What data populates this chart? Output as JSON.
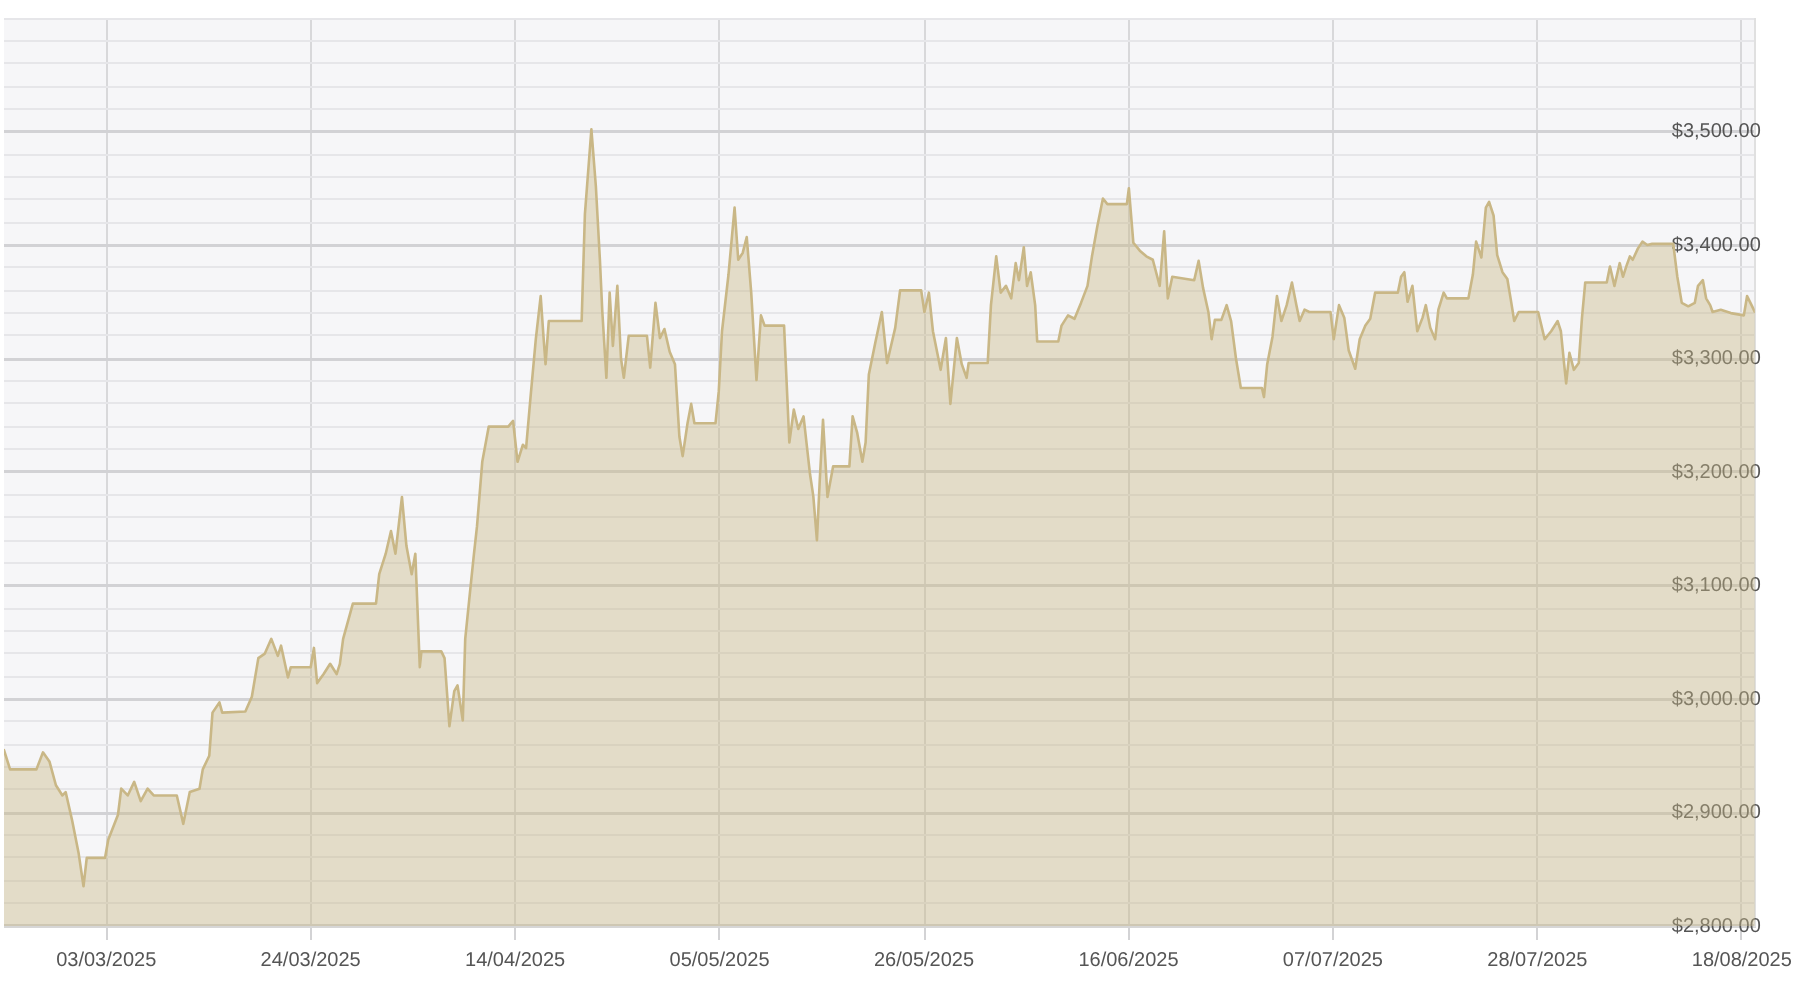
{
  "chart_data": {
    "type": "area",
    "color": "#c9b786",
    "x": [
      "2025-02-20T12:00",
      "2025-02-21T03:00",
      "2025-02-23T20:00",
      "2025-02-24T12:00",
      "2025-02-25T04:00",
      "2025-02-25T20:00",
      "2025-02-26T12:00",
      "2025-02-26T20:00",
      "2025-02-27T12:00",
      "2025-02-28T04:00",
      "2025-02-28T16:00",
      "2025-03-01T00:00",
      "2025-03-02T21:00",
      "2025-03-03T05:00",
      "2025-03-04T05:00",
      "2025-03-04T13:00",
      "2025-03-05T05:00",
      "2025-03-05T21:00",
      "2025-03-06T13:00",
      "2025-03-07T06:00",
      "2025-03-07T21:00",
      "2025-03-10T06:00",
      "2025-03-10T22:00",
      "2025-03-11T14:00",
      "2025-03-12T14:00",
      "2025-03-12T22:00",
      "2025-03-13T14:00",
      "2025-03-13T22:00",
      "2025-03-14T15:00",
      "2025-03-14T22:00",
      "2025-03-17T07:00",
      "2025-03-17T23:00",
      "2025-03-18T15:00",
      "2025-03-19T07:00",
      "2025-03-19T23:00",
      "2025-03-20T15:00",
      "2025-03-20T23:00",
      "2025-03-21T16:00",
      "2025-03-21T23:00",
      "2025-03-24T00:00",
      "2025-03-24T08:00",
      "2025-03-24T16:00",
      "2025-03-25T08:00",
      "2025-03-26T00:00",
      "2025-03-26T16:00",
      "2025-03-27T00:00",
      "2025-03-27T08:00",
      "2025-03-28T08:00",
      "2025-03-30T17:00",
      "2025-03-31T01:00",
      "2025-03-31T17:00",
      "2025-04-01T06:00",
      "2025-04-01T17:00",
      "2025-04-02T09:00",
      "2025-04-02T20:00",
      "2025-04-03T09:00",
      "2025-04-03T18:00",
      "2025-04-04T05:00",
      "2025-04-04T09:00",
      "2025-04-06T10:00",
      "2025-04-06T18:00",
      "2025-04-07T06:00",
      "2025-04-07T18:00",
      "2025-04-08T02:00",
      "2025-04-08T15:00",
      "2025-04-08T21:00",
      "2025-04-09T07:00",
      "2025-04-09T18:00",
      "2025-04-10T02:00",
      "2025-04-10T15:00",
      "2025-04-11T07:00",
      "2025-04-13T07:00",
      "2025-04-13T19:00",
      "2025-04-14T06:00",
      "2025-04-14T19:00",
      "2025-04-15T03:00",
      "2025-04-15T14:00",
      "2025-04-16T03:00",
      "2025-04-16T15:00",
      "2025-04-16T22:00",
      "2025-04-17T03:00",
      "2025-04-17T11:00",
      "2025-04-20T20:00",
      "2025-04-21T04:00",
      "2025-04-21T20:00",
      "2025-04-22T07:00",
      "2025-04-22T17:00",
      "2025-04-22T23:00",
      "2025-04-23T09:00",
      "2025-04-23T17:00",
      "2025-04-24T01:00",
      "2025-04-24T12:00",
      "2025-04-24T21:00",
      "2025-04-25T04:00",
      "2025-04-25T16:00",
      "2025-04-27T13:00",
      "2025-04-27T21:00",
      "2025-04-28T10:00",
      "2025-04-28T21:00",
      "2025-04-29T08:00",
      "2025-04-29T21:00",
      "2025-04-30T10:00",
      "2025-04-30T21:00",
      "2025-05-01T05:00",
      "2025-05-01T17:00",
      "2025-05-02T02:00",
      "2025-05-02T10:00",
      "2025-05-04T14:00",
      "2025-05-04T22:00",
      "2025-05-05T06:00",
      "2025-05-05T22:00",
      "2025-05-06T13:00",
      "2025-05-06T22:00",
      "2025-05-07T09:00",
      "2025-05-07T19:00",
      "2025-05-08T06:00",
      "2025-05-08T19:00",
      "2025-05-09T06:00",
      "2025-05-09T15:00",
      "2025-05-11T15:00",
      "2025-05-12T04:00",
      "2025-05-12T15:00",
      "2025-05-13T02:00",
      "2025-05-13T15:00",
      "2025-05-14T07:00",
      "2025-05-14T15:00",
      "2025-05-15T00:00",
      "2025-05-15T07:00",
      "2025-05-15T15:00",
      "2025-05-16T02:00",
      "2025-05-16T16:00",
      "2025-05-18T08:00",
      "2025-05-18T16:00",
      "2025-05-19T03:00",
      "2025-05-19T16:00",
      "2025-05-20T00:00",
      "2025-05-20T08:00",
      "2025-05-21T00:00",
      "2025-05-21T16:00",
      "2025-05-22T05:00",
      "2025-05-22T12:00",
      "2025-05-23T01:00",
      "2025-05-23T13:00",
      "2025-05-25T17:00",
      "2025-05-26T01:00",
      "2025-05-26T12:00",
      "2025-05-26T22:00",
      "2025-05-27T17:00",
      "2025-05-28T06:00",
      "2025-05-28T17:00",
      "2025-05-29T09:00",
      "2025-05-29T21:00",
      "2025-05-30T09:00",
      "2025-05-30T14:00",
      "2025-06-01T13:00",
      "2025-06-01T21:00",
      "2025-06-02T10:00",
      "2025-06-02T21:00",
      "2025-06-03T10:00",
      "2025-06-03T23:00",
      "2025-06-04T10:00",
      "2025-06-04T18:00",
      "2025-06-05T06:00",
      "2025-06-05T14:00",
      "2025-06-05T23:00",
      "2025-06-06T10:00",
      "2025-06-06T15:00",
      "2025-06-08T19:00",
      "2025-06-09T03:00",
      "2025-06-09T19:00",
      "2025-06-10T11:00",
      "2025-06-11T03:00",
      "2025-06-11T19:00",
      "2025-06-12T06:00",
      "2025-06-12T19:00",
      "2025-06-13T09:00",
      "2025-06-13T20:00",
      "2025-06-15T20:00",
      "2025-06-16T01:00",
      "2025-06-16T12:00",
      "2025-06-17T04:00",
      "2025-06-17T20:00",
      "2025-06-18T12:00",
      "2025-06-19T05:00",
      "2025-06-19T16:00",
      "2025-06-20T01:00",
      "2025-06-20T12:00",
      "2025-06-22T18:00",
      "2025-06-23T05:00",
      "2025-06-23T16:00",
      "2025-06-24T05:00",
      "2025-06-24T13:00",
      "2025-06-24T21:00",
      "2025-06-25T13:00",
      "2025-06-26T02:00",
      "2025-06-26T13:00",
      "2025-06-27T01:00",
      "2025-06-27T13:00",
      "2025-06-29T17:00",
      "2025-06-29T22:00",
      "2025-06-30T06:00",
      "2025-06-30T19:00",
      "2025-07-01T06:00",
      "2025-07-01T17:00",
      "2025-07-02T06:00",
      "2025-07-02T19:00",
      "2025-07-03T06:00",
      "2025-07-03T14:00",
      "2025-07-04T02:00",
      "2025-07-04T14:00",
      "2025-07-06T18:00",
      "2025-07-07T02:00",
      "2025-07-07T15:00",
      "2025-07-08T04:00",
      "2025-07-08T15:00",
      "2025-07-09T07:00",
      "2025-07-09T18:00",
      "2025-07-10T08:00",
      "2025-07-10T20:00",
      "2025-07-11T08:00",
      "2025-07-13T16:00",
      "2025-07-14T00:00",
      "2025-07-14T08:00",
      "2025-07-14T16:00",
      "2025-07-15T04:00",
      "2025-07-15T16:00",
      "2025-07-16T05:00",
      "2025-07-16T13:00",
      "2025-07-17T00:00",
      "2025-07-17T12:00",
      "2025-07-17T20:00",
      "2025-07-18T09:00",
      "2025-07-18T17:00",
      "2025-07-20T22:00",
      "2025-07-21T09:00",
      "2025-07-21T17:00",
      "2025-07-22T06:00",
      "2025-07-22T17:00",
      "2025-07-23T01:00",
      "2025-07-23T12:00",
      "2025-07-23T21:00",
      "2025-07-24T10:00",
      "2025-07-24T22:00",
      "2025-07-25T06:00",
      "2025-07-25T15:00",
      "2025-07-26T02:00",
      "2025-07-28T02:00",
      "2025-07-28T10:00",
      "2025-07-28T18:00",
      "2025-07-29T10:00",
      "2025-07-30T02:00",
      "2025-07-30T10:00",
      "2025-07-30T18:00",
      "2025-07-30T23:00",
      "2025-07-31T07:00",
      "2025-07-31T18:00",
      "2025-08-01T06:00",
      "2025-08-01T14:00",
      "2025-08-01T22:00",
      "2025-08-04T03:00",
      "2025-08-04T11:00",
      "2025-08-04T22:00",
      "2025-08-05T11:00",
      "2025-08-05T19:00",
      "2025-08-06T03:00",
      "2025-08-06T12:00",
      "2025-08-06T19:00",
      "2025-08-07T08:00",
      "2025-08-07T19:00",
      "2025-08-08T07:00",
      "2025-08-08T19:00",
      "2025-08-10T23:00",
      "2025-08-11T09:00",
      "2025-08-11T20:00",
      "2025-08-12T12:00",
      "2025-08-13T04:00",
      "2025-08-13T12:00",
      "2025-08-14T00:00",
      "2025-08-14T08:00",
      "2025-08-14T18:00",
      "2025-08-15T00:00",
      "2025-08-15T20:00",
      "2025-08-16T21:00",
      "2025-08-18T05:00",
      "2025-08-18T13:00",
      "2025-08-19T00:00",
      "2025-08-19T08:00"
    ],
    "values": [
      2955,
      2938,
      2938,
      2953,
      2945,
      2924,
      2915,
      2918,
      2893,
      2864,
      2835,
      2860,
      2860,
      2876,
      2898,
      2921,
      2915,
      2927,
      2910,
      2921,
      2915,
      2915,
      2890,
      2918,
      2921,
      2938,
      2950,
      2988,
      2997,
      2988,
      2989,
      3002,
      3036,
      3040,
      3053,
      3038,
      3047,
      3019,
      3028,
      3028,
      3045,
      3014,
      3022,
      3031,
      3022,
      3031,
      3053,
      3084,
      3084,
      3110,
      3128,
      3148,
      3128,
      3178,
      3135,
      3110,
      3128,
      3028,
      3042,
      3042,
      3036,
      2976,
      3007,
      3012,
      2981,
      3053,
      3088,
      3126,
      3152,
      3209,
      3240,
      3240,
      3245,
      3209,
      3224,
      3221,
      3266,
      3317,
      3355,
      3319,
      3295,
      3333,
      3333,
      3427,
      3502,
      3452,
      3387,
      3341,
      3283,
      3358,
      3311,
      3364,
      3300,
      3283,
      3320,
      3320,
      3292,
      3349,
      3318,
      3326,
      3306,
      3295,
      3231,
      3214,
      3243,
      3260,
      3243,
      3243,
      3271,
      3324,
      3374,
      3433,
      3387,
      3393,
      3407,
      3358,
      3281,
      3338,
      3329,
      3329,
      3226,
      3255,
      3238,
      3249,
      3198,
      3179,
      3140,
      3193,
      3246,
      3178,
      3205,
      3205,
      3249,
      3235,
      3209,
      3226,
      3286,
      3314,
      3341,
      3296,
      3307,
      3327,
      3360,
      3360,
      3341,
      3358,
      3324,
      3290,
      3318,
      3260,
      3318,
      3295,
      3283,
      3296,
      3296,
      3347,
      3390,
      3358,
      3364,
      3353,
      3384,
      3369,
      3398,
      3364,
      3376,
      3347,
      3315,
      3315,
      3329,
      3338,
      3335,
      3349,
      3364,
      3390,
      3416,
      3441,
      3436,
      3436,
      3450,
      3402,
      3395,
      3390,
      3387,
      3364,
      3412,
      3353,
      3372,
      3369,
      3386,
      3362,
      3341,
      3317,
      3334,
      3334,
      3347,
      3333,
      3300,
      3274,
      3274,
      3266,
      3295,
      3319,
      3355,
      3333,
      3347,
      3367,
      3347,
      3333,
      3343,
      3341,
      3341,
      3317,
      3347,
      3336,
      3307,
      3291,
      3317,
      3329,
      3335,
      3358,
      3358,
      3372,
      3376,
      3350,
      3364,
      3324,
      3336,
      3347,
      3327,
      3317,
      3343,
      3358,
      3353,
      3353,
      3374,
      3403,
      3389,
      3433,
      3438,
      3426,
      3391,
      3376,
      3370,
      3353,
      3333,
      3341,
      3341,
      3329,
      3317,
      3324,
      3333,
      3324,
      3295,
      3278,
      3305,
      3290,
      3296,
      3336,
      3367,
      3367,
      3381,
      3364,
      3384,
      3372,
      3381,
      3390,
      3387,
      3397,
      3403,
      3400,
      3401,
      3401,
      3372,
      3349,
      3346,
      3349,
      3364,
      3369,
      3353,
      3347,
      3341,
      3343,
      3340,
      3338,
      3355,
      3347,
      3341
    ],
    "xlim": [
      "2025-02-20T12:00",
      "2025-08-19T08:00"
    ],
    "xticks": [
      {
        "value": "2025-03-03",
        "label": "03/03/2025"
      },
      {
        "value": "2025-03-24",
        "label": "24/03/2025"
      },
      {
        "value": "2025-04-14",
        "label": "14/04/2025"
      },
      {
        "value": "2025-05-05",
        "label": "05/05/2025"
      },
      {
        "value": "2025-05-26",
        "label": "26/05/2025"
      },
      {
        "value": "2025-06-16",
        "label": "16/06/2025"
      },
      {
        "value": "2025-07-07",
        "label": "07/07/2025"
      },
      {
        "value": "2025-07-28",
        "label": "28/07/2025"
      },
      {
        "value": "2025-08-18",
        "label": "18/08/2025"
      }
    ],
    "ylim": [
      2800,
      3600
    ],
    "yticks": [
      {
        "value": 2800,
        "label": "$2,800.00"
      },
      {
        "value": 2820,
        "label": null
      },
      {
        "value": 2840,
        "label": null
      },
      {
        "value": 2860,
        "label": null
      },
      {
        "value": 2880,
        "label": null
      },
      {
        "value": 2900,
        "label": "$2,900.00"
      },
      {
        "value": 2920,
        "label": null
      },
      {
        "value": 2940,
        "label": null
      },
      {
        "value": 2960,
        "label": null
      },
      {
        "value": 2980,
        "label": null
      },
      {
        "value": 3000,
        "label": "$3,000.00"
      },
      {
        "value": 3020,
        "label": null
      },
      {
        "value": 3040,
        "label": null
      },
      {
        "value": 3060,
        "label": null
      },
      {
        "value": 3080,
        "label": null
      },
      {
        "value": 3100,
        "label": "$3,100.00"
      },
      {
        "value": 3120,
        "label": null
      },
      {
        "value": 3140,
        "label": null
      },
      {
        "value": 3160,
        "label": null
      },
      {
        "value": 3180,
        "label": null
      },
      {
        "value": 3200,
        "label": "$3,200.00"
      },
      {
        "value": 3220,
        "label": null
      },
      {
        "value": 3240,
        "label": null
      },
      {
        "value": 3260,
        "label": null
      },
      {
        "value": 3280,
        "label": null
      },
      {
        "value": 3300,
        "label": "$3,300.00"
      },
      {
        "value": 3320,
        "label": null
      },
      {
        "value": 3340,
        "label": null
      },
      {
        "value": 3360,
        "label": null
      },
      {
        "value": 3380,
        "label": null
      },
      {
        "value": 3400,
        "label": "$3,400.00"
      },
      {
        "value": 3420,
        "label": null
      },
      {
        "value": 3440,
        "label": null
      },
      {
        "value": 3460,
        "label": null
      },
      {
        "value": 3480,
        "label": null
      },
      {
        "value": 3500,
        "label": "$3,500.00"
      },
      {
        "value": 3520,
        "label": null
      },
      {
        "value": 3540,
        "label": null
      },
      {
        "value": 3560,
        "label": null
      },
      {
        "value": 3580,
        "label": null
      },
      {
        "value": 3600,
        "label": null
      }
    ],
    "grid": true
  }
}
